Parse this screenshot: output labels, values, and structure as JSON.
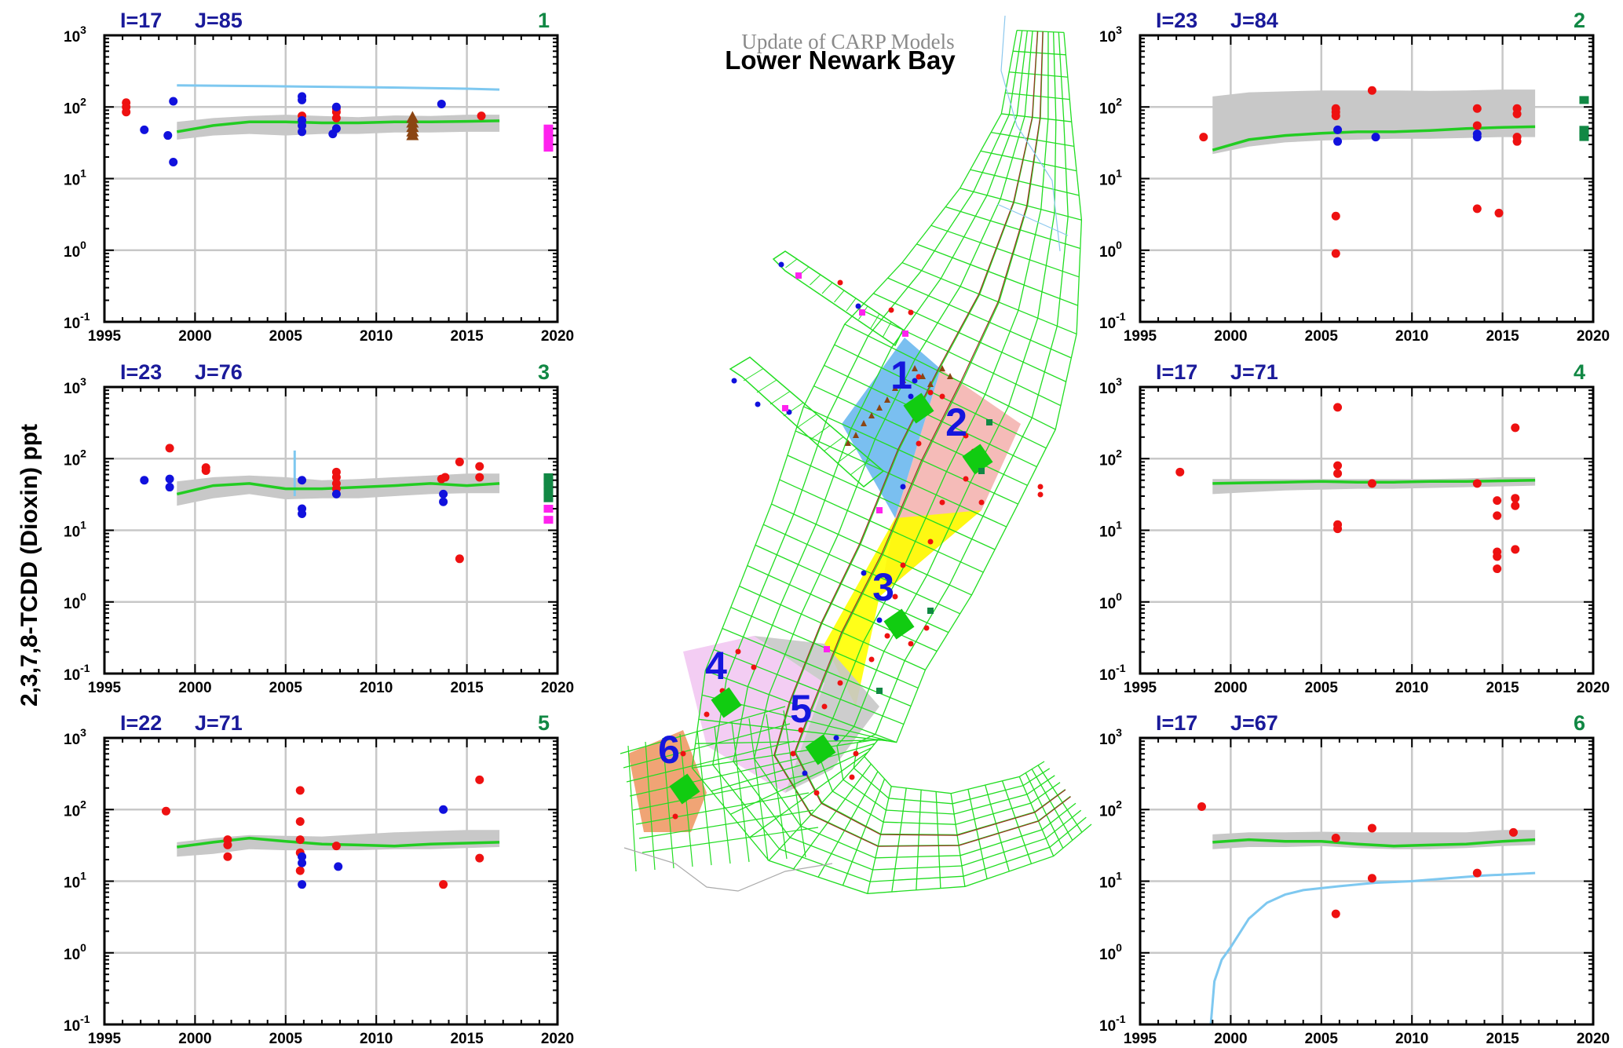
{
  "page": {
    "y_axis_label": "2,3,7,8-TCDD (Dioxin) ppt",
    "colors": {
      "model_line": "#22cc22",
      "model_band": "#c8c8c8",
      "blue_line": "#7ec8f0",
      "red_obs": "#ee1111",
      "blue_obs": "#1111dd",
      "magenta_obs": "#ff22ee",
      "green_obs": "#118844",
      "brown_obs": "#8b4513",
      "header_text": "#1a1a9a",
      "panel_number": "#118844"
    }
  },
  "map": {
    "subtitle": "Update of CARP Models",
    "title": "Lower Newark Bay",
    "zone_labels": [
      "1",
      "2",
      "3",
      "4",
      "5",
      "6"
    ],
    "zone_colors": [
      "#6cb8ee",
      "#f4b4b0",
      "#ffff00",
      "#f2c8f2",
      "#c8c8c8",
      "#ee9a66"
    ],
    "grid_color": "#22dd22",
    "label_color": "#1515dd"
  },
  "chart_data": [
    {
      "panel": "1",
      "cell": "I=17 J=85",
      "type": "scatter",
      "y_scale": "log",
      "x_ticks": [
        "1995",
        "2000",
        "2005",
        "2010",
        "2015",
        "2020"
      ],
      "y_ticks": [
        "10^3",
        "10^2",
        "10^1",
        "10^0",
        "10^-1"
      ],
      "xlim": [
        1995,
        2020
      ],
      "ylim": [
        0.1,
        1000
      ],
      "model": {
        "x": [
          1999,
          2001,
          2003,
          2005,
          2007,
          2009,
          2011,
          2013,
          2015,
          2016.8
        ],
        "y": [
          45,
          55,
          62,
          62,
          60,
          60,
          62,
          62,
          63,
          64
        ]
      },
      "model_band": {
        "lower": [
          35,
          40,
          42,
          40,
          42,
          42,
          44,
          44,
          45,
          45
        ],
        "upper": [
          62,
          70,
          75,
          78,
          75,
          72,
          76,
          75,
          78,
          78
        ]
      },
      "blue_line": {
        "x": [
          1999,
          2004,
          2010,
          2015,
          2016.8
        ],
        "y": [
          200,
          195,
          188,
          180,
          175
        ]
      },
      "obs_red": [
        [
          1996.2,
          115
        ],
        [
          1996.2,
          100
        ],
        [
          1996.2,
          85
        ],
        [
          2005.9,
          75
        ],
        [
          2007.8,
          95
        ],
        [
          2007.8,
          85
        ],
        [
          2007.8,
          70
        ],
        [
          2015.8,
          75
        ]
      ],
      "obs_blue": [
        [
          1997.2,
          48
        ],
        [
          1998.5,
          40
        ],
        [
          1998.8,
          120
        ],
        [
          1998.8,
          17
        ],
        [
          2005.9,
          140
        ],
        [
          2005.9,
          125
        ],
        [
          2005.9,
          65
        ],
        [
          2005.9,
          55
        ],
        [
          2005.9,
          45
        ],
        [
          2007.8,
          100
        ],
        [
          2007.8,
          50
        ],
        [
          2007.6,
          42
        ],
        [
          2013.6,
          110
        ]
      ],
      "obs_magenta": [
        [
          2019.5,
          50
        ],
        [
          2019.5,
          45
        ],
        [
          2019.5,
          40
        ],
        [
          2019.5,
          35
        ],
        [
          2019.5,
          30
        ],
        [
          2019.5,
          27
        ]
      ],
      "obs_brown": [
        [
          2012,
          70
        ],
        [
          2012,
          60
        ],
        [
          2012,
          52
        ],
        [
          2012,
          45
        ],
        [
          2012,
          40
        ]
      ]
    },
    {
      "panel": "2",
      "cell": "I=23 J=84",
      "type": "scatter",
      "y_scale": "log",
      "x_ticks": [
        "1995",
        "2000",
        "2005",
        "2010",
        "2015",
        "2020"
      ],
      "y_ticks": [
        "10^3",
        "10^2",
        "10^1",
        "10^0",
        "10^-1"
      ],
      "xlim": [
        1995,
        2020
      ],
      "ylim": [
        0.1,
        1000
      ],
      "model": {
        "x": [
          1999,
          2001,
          2003,
          2005,
          2007,
          2009,
          2011,
          2013,
          2015,
          2016.8
        ],
        "y": [
          25,
          35,
          40,
          43,
          45,
          45,
          47,
          50,
          52,
          53
        ]
      },
      "model_band": {
        "lower": [
          22,
          28,
          32,
          34,
          35,
          36,
          36,
          37,
          38,
          38
        ],
        "upper": [
          140,
          160,
          165,
          170,
          170,
          170,
          168,
          170,
          175,
          175
        ]
      },
      "obs_red": [
        [
          1998.5,
          38
        ],
        [
          2005.8,
          95
        ],
        [
          2005.8,
          85
        ],
        [
          2005.8,
          75
        ],
        [
          2005.8,
          3
        ],
        [
          2005.8,
          0.9
        ],
        [
          2007.8,
          170
        ],
        [
          2013.6,
          95
        ],
        [
          2013.6,
          55
        ],
        [
          2013.6,
          3.8
        ],
        [
          2014.8,
          3.3
        ],
        [
          2015.8,
          95
        ],
        [
          2015.8,
          80
        ],
        [
          2015.8,
          38
        ],
        [
          2015.8,
          33
        ]
      ],
      "obs_blue": [
        [
          2005.9,
          48
        ],
        [
          2005.9,
          33
        ],
        [
          2008,
          38
        ],
        [
          2013.6,
          42
        ],
        [
          2013.6,
          38
        ]
      ],
      "obs_green": [
        [
          2019.5,
          125
        ],
        [
          2019.5,
          48
        ],
        [
          2019.5,
          42
        ],
        [
          2019.5,
          38
        ]
      ]
    },
    {
      "panel": "3",
      "cell": "I=23 J=76",
      "type": "scatter",
      "y_scale": "log",
      "x_ticks": [
        "1995",
        "2000",
        "2005",
        "2010",
        "2015",
        "2020"
      ],
      "y_ticks": [
        "10^3",
        "10^2",
        "10^1",
        "10^0",
        "10^-1"
      ],
      "xlim": [
        1995,
        2020
      ],
      "ylim": [
        0.1,
        1000
      ],
      "model": {
        "x": [
          1999,
          2001,
          2003,
          2005,
          2007,
          2009,
          2011,
          2013,
          2015,
          2016.8
        ],
        "y": [
          32,
          42,
          45,
          38,
          38,
          40,
          42,
          45,
          42,
          45
        ]
      },
      "model_band": {
        "lower": [
          22,
          28,
          32,
          27,
          28,
          28,
          30,
          32,
          33,
          33
        ],
        "upper": [
          48,
          55,
          58,
          55,
          50,
          52,
          55,
          58,
          62,
          62
        ]
      },
      "blue_line": {
        "x": [
          2005.5,
          2005.5
        ],
        "y": [
          30,
          130
        ]
      },
      "obs_red": [
        [
          1998.6,
          140
        ],
        [
          2000.6,
          75
        ],
        [
          2000.6,
          68
        ],
        [
          2007.8,
          65
        ],
        [
          2007.8,
          55
        ],
        [
          2007.8,
          45
        ],
        [
          2007.8,
          38
        ],
        [
          2013.6,
          52
        ],
        [
          2013.8,
          55
        ],
        [
          2014.6,
          90
        ],
        [
          2014.6,
          4
        ],
        [
          2015.7,
          78
        ],
        [
          2015.7,
          55
        ]
      ],
      "obs_blue": [
        [
          1997.2,
          50
        ],
        [
          1998.6,
          52
        ],
        [
          1998.6,
          40
        ],
        [
          2005.9,
          50
        ],
        [
          2005.9,
          20
        ],
        [
          2005.9,
          17
        ],
        [
          2007.8,
          32
        ],
        [
          2013.7,
          32
        ],
        [
          2013.7,
          25
        ]
      ],
      "obs_green": [
        [
          2019.5,
          55
        ],
        [
          2019.5,
          48
        ],
        [
          2019.5,
          42
        ],
        [
          2019.5,
          35
        ],
        [
          2019.5,
          28
        ]
      ],
      "obs_magenta": [
        [
          2019.5,
          20
        ],
        [
          2019.5,
          14
        ]
      ]
    },
    {
      "panel": "4",
      "cell": "I=17 J=71",
      "type": "scatter",
      "y_scale": "log",
      "x_ticks": [
        "1995",
        "2000",
        "2005",
        "2010",
        "2015",
        "2020"
      ],
      "y_ticks": [
        "10^3",
        "10^2",
        "10^1",
        "10^0",
        "10^-1"
      ],
      "xlim": [
        1995,
        2020
      ],
      "ylim": [
        0.1,
        1000
      ],
      "model": {
        "x": [
          1999,
          2001,
          2003,
          2005,
          2007,
          2009,
          2011,
          2013,
          2015,
          2016.8
        ],
        "y": [
          45,
          46,
          47,
          48,
          47,
          47,
          48,
          48,
          49,
          50
        ]
      },
      "model_band": {
        "lower": [
          32,
          34,
          36,
          37,
          38,
          38,
          39,
          40,
          41,
          42
        ],
        "upper": [
          52,
          52,
          52,
          52,
          52,
          52,
          52,
          53,
          55,
          55
        ]
      },
      "obs_red": [
        [
          1997.2,
          65
        ],
        [
          2005.9,
          520
        ],
        [
          2005.9,
          80
        ],
        [
          2005.9,
          62
        ],
        [
          2005.9,
          12
        ],
        [
          2005.9,
          10.5
        ],
        [
          2007.8,
          45
        ],
        [
          2013.6,
          45
        ],
        [
          2014.7,
          26
        ],
        [
          2014.7,
          16
        ],
        [
          2014.7,
          5
        ],
        [
          2014.7,
          4.3
        ],
        [
          2014.7,
          2.9
        ],
        [
          2015.7,
          270
        ],
        [
          2015.7,
          28
        ],
        [
          2015.7,
          22
        ],
        [
          2015.7,
          5.4
        ]
      ]
    },
    {
      "panel": "5",
      "cell": "I=22 J=71",
      "type": "scatter",
      "y_scale": "log",
      "x_ticks": [
        "1995",
        "2000",
        "2005",
        "2010",
        "2015",
        "2020"
      ],
      "y_ticks": [
        "10^3",
        "10^2",
        "10^1",
        "10^0",
        "10^-1"
      ],
      "xlim": [
        1995,
        2020
      ],
      "ylim": [
        0.1,
        1000
      ],
      "model": {
        "x": [
          1999,
          2001,
          2003,
          2005,
          2007,
          2009,
          2011,
          2013,
          2015,
          2016.8
        ],
        "y": [
          30,
          35,
          40,
          36,
          33,
          32,
          31,
          33,
          34,
          35
        ]
      },
      "model_band": {
        "lower": [
          22,
          24,
          28,
          27,
          27,
          27,
          28,
          28,
          29,
          30
        ],
        "upper": [
          35,
          40,
          44,
          43,
          42,
          45,
          48,
          50,
          52,
          52
        ]
      },
      "obs_red": [
        [
          1998.4,
          95
        ],
        [
          2001.8,
          38
        ],
        [
          2001.8,
          32
        ],
        [
          2001.8,
          22
        ],
        [
          2005.8,
          185
        ],
        [
          2005.8,
          68
        ],
        [
          2005.8,
          38
        ],
        [
          2005.8,
          25
        ],
        [
          2005.8,
          14
        ],
        [
          2007.8,
          31
        ],
        [
          2013.7,
          9
        ],
        [
          2015.7,
          260
        ],
        [
          2015.7,
          21
        ]
      ],
      "obs_blue": [
        [
          2005.9,
          22
        ],
        [
          2005.9,
          18
        ],
        [
          2005.9,
          9
        ],
        [
          2007.9,
          16
        ],
        [
          2013.7,
          100
        ]
      ]
    },
    {
      "panel": "6",
      "cell": "I=17 J=67",
      "type": "scatter",
      "y_scale": "log",
      "x_ticks": [
        "1995",
        "2000",
        "2005",
        "2010",
        "2015",
        "2020"
      ],
      "y_ticks": [
        "10^3",
        "10^2",
        "10^1",
        "10^0",
        "10^-1"
      ],
      "xlim": [
        1995,
        2020
      ],
      "ylim": [
        0.1,
        1000
      ],
      "model": {
        "x": [
          1999,
          2001,
          2003,
          2005,
          2007,
          2009,
          2011,
          2013,
          2015,
          2016.8
        ],
        "y": [
          35,
          38,
          36,
          36,
          33,
          31,
          32,
          33,
          36,
          38
        ]
      },
      "model_band": {
        "lower": [
          28,
          30,
          30,
          31,
          29,
          28,
          28,
          29,
          31,
          32
        ],
        "upper": [
          45,
          48,
          48,
          49,
          48,
          48,
          48,
          48,
          52,
          52
        ]
      },
      "blue_line": {
        "x": [
          1998.9,
          1999.1,
          1999.5,
          2000,
          2001,
          2002,
          2003,
          2004,
          2006,
          2008,
          2010,
          2012,
          2014,
          2016.8
        ],
        "y": [
          0.1,
          0.4,
          0.8,
          1.2,
          3,
          5,
          6.5,
          7.5,
          8.5,
          9.5,
          10,
          11,
          12,
          13
        ]
      },
      "obs_red": [
        [
          1998.4,
          110
        ],
        [
          2005.8,
          40
        ],
        [
          2005.8,
          3.5
        ],
        [
          2007.8,
          55
        ],
        [
          2007.8,
          11
        ],
        [
          2013.6,
          13
        ],
        [
          2015.6,
          48
        ]
      ]
    }
  ]
}
